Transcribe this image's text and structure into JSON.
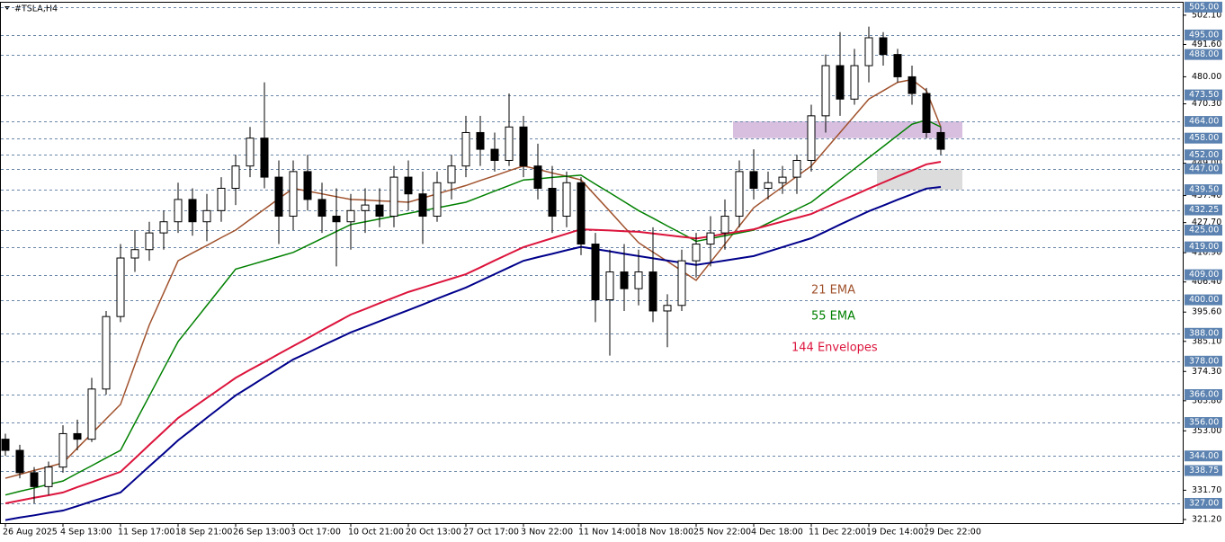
{
  "chart_data": {
    "type": "candlestick",
    "title": "#TSLA,H4",
    "categories": [
      "26 Aug 2025",
      null,
      null,
      null,
      "4 Sep 13:00",
      null,
      null,
      null,
      "11 Sep 17:00",
      null,
      null,
      null,
      "18 Sep 21:00",
      null,
      null,
      null,
      "26 Sep 13:00",
      null,
      null,
      null,
      "3 Oct 17:00",
      null,
      null,
      null,
      "10 Oct 21:00",
      null,
      null,
      null,
      "20 Oct 13:00",
      null,
      null,
      null,
      "27 Oct 17:00",
      null,
      null,
      null,
      "3 Nov 22:00",
      null,
      null,
      null,
      "11 Nov 14:00",
      null,
      null,
      null,
      "18 Nov 18:00",
      null,
      null,
      null,
      "25 Nov 22:00",
      null,
      null,
      null,
      "4 Dec 18:00",
      null,
      null,
      null,
      "11 Dec 22:00",
      null,
      null,
      null,
      "19 Dec 14:00",
      null,
      null,
      null,
      "29 Dec 22:00",
      null
    ],
    "ohlc": [
      [
        350,
        352,
        344,
        346
      ],
      [
        346,
        348,
        336,
        338
      ],
      [
        338,
        340,
        327,
        333
      ],
      [
        333,
        342,
        330,
        340
      ],
      [
        340,
        355,
        338,
        352
      ],
      [
        352,
        357,
        346,
        350
      ],
      [
        350,
        372,
        349,
        368
      ],
      [
        368,
        396,
        366,
        394
      ],
      [
        394,
        420,
        392,
        415
      ],
      [
        415,
        425,
        410,
        418
      ],
      [
        418,
        428,
        414,
        424
      ],
      [
        424,
        432,
        418,
        428
      ],
      [
        428,
        442,
        424,
        436
      ],
      [
        436,
        440,
        423,
        428
      ],
      [
        428,
        438,
        421,
        432
      ],
      [
        432,
        444,
        428,
        440
      ],
      [
        440,
        452,
        434,
        448
      ],
      [
        448,
        462,
        444,
        458
      ],
      [
        458,
        478,
        440,
        444
      ],
      [
        444,
        450,
        420,
        430
      ],
      [
        430,
        450,
        425,
        446
      ],
      [
        446,
        452,
        432,
        436
      ],
      [
        436,
        442,
        424,
        430
      ],
      [
        430,
        440,
        412,
        428
      ],
      [
        428,
        438,
        418,
        432
      ],
      [
        432,
        440,
        424,
        434
      ],
      [
        434,
        440,
        426,
        430
      ],
      [
        430,
        448,
        426,
        444
      ],
      [
        444,
        450,
        432,
        438
      ],
      [
        438,
        446,
        420,
        430
      ],
      [
        430,
        446,
        428,
        442
      ],
      [
        442,
        452,
        436,
        448
      ],
      [
        448,
        466,
        444,
        460
      ],
      [
        460,
        466,
        448,
        454
      ],
      [
        454,
        460,
        446,
        450
      ],
      [
        450,
        474,
        448,
        462
      ],
      [
        462,
        466,
        444,
        448
      ],
      [
        448,
        456,
        436,
        440
      ],
      [
        440,
        448,
        424,
        430
      ],
      [
        430,
        446,
        426,
        442
      ],
      [
        442,
        444,
        416,
        420
      ],
      [
        420,
        424,
        392,
        400
      ],
      [
        400,
        418,
        380,
        410
      ],
      [
        410,
        420,
        396,
        404
      ],
      [
        404,
        418,
        398,
        410
      ],
      [
        410,
        426,
        392,
        396
      ],
      [
        396,
        402,
        383,
        398
      ],
      [
        398,
        418,
        396,
        414
      ],
      [
        414,
        424,
        408,
        420
      ],
      [
        420,
        430,
        412,
        424
      ],
      [
        424,
        436,
        418,
        430
      ],
      [
        430,
        450,
        426,
        446
      ],
      [
        446,
        454,
        436,
        440
      ],
      [
        440,
        446,
        436,
        442
      ],
      [
        442,
        448,
        438,
        444
      ],
      [
        444,
        452,
        438,
        450
      ],
      [
        450,
        470,
        446,
        466
      ],
      [
        466,
        488,
        460,
        484
      ],
      [
        484,
        496,
        466,
        472
      ],
      [
        472,
        490,
        470,
        484
      ],
      [
        484,
        498,
        478,
        494
      ],
      [
        494,
        496,
        484,
        488
      ],
      [
        488,
        490,
        478,
        480
      ],
      [
        480,
        484,
        470,
        474
      ],
      [
        474,
        476,
        458,
        460
      ],
      [
        460,
        462,
        452,
        454
      ]
    ],
    "series": [
      {
        "name": "21 EMA",
        "color": "#a0522d",
        "values": [
          336,
          337.4,
          338.8,
          340.1,
          341.5,
          346.8,
          352,
          357.3,
          362.5,
          376.8,
          391,
          402.5,
          414,
          416.8,
          419.5,
          422.3,
          425,
          428.8,
          432.5,
          436.3,
          440,
          439,
          438,
          437,
          436,
          435.8,
          435.5,
          435.3,
          435,
          436.5,
          438,
          439.5,
          441,
          442.8,
          444.5,
          446.3,
          448,
          446.8,
          445.5,
          444.3,
          443,
          437.4,
          431.8,
          426.1,
          420.5,
          417.1,
          413.8,
          410.4,
          407,
          413.5,
          420,
          426.5,
          433,
          436.8,
          440.5,
          444.3,
          448,
          454,
          460,
          466,
          472,
          475,
          478,
          479,
          475,
          462
        ]
      },
      {
        "name": "55 EMA",
        "color": "#008000",
        "values": [
          330,
          331.3,
          332.5,
          333.8,
          335,
          337.8,
          340.5,
          343.3,
          346,
          355.8,
          365.5,
          375.3,
          385,
          391.5,
          398,
          404.5,
          411,
          412.5,
          414,
          415.5,
          417,
          419.5,
          422,
          424.5,
          427,
          428,
          429,
          430,
          431,
          432,
          433,
          434,
          435,
          437,
          439,
          441,
          443,
          443.4,
          443.9,
          444.3,
          444.7,
          441.5,
          438.4,
          435.2,
          432,
          429.3,
          426.5,
          423.8,
          421,
          422,
          423,
          424,
          425,
          427.5,
          430,
          432.5,
          435,
          439,
          443,
          447,
          451,
          455,
          459,
          463,
          464.5,
          462
        ]
      },
      {
        "name": "144 Envelopes",
        "color": "#dc143c",
        "values": [
          327,
          328,
          329,
          329.9,
          330.9,
          332.8,
          334.6,
          336.5,
          338.3,
          343.1,
          348,
          352.8,
          357.6,
          361.2,
          364.8,
          368.4,
          372,
          374.9,
          377.7,
          380.6,
          383.4,
          386.2,
          389.1,
          391.9,
          394.7,
          396.7,
          398.8,
          400.8,
          402.8,
          404.4,
          406,
          407.6,
          409.2,
          411.6,
          414.1,
          416.5,
          418.9,
          420.5,
          422.1,
          423.7,
          425.3,
          425.1,
          424.9,
          424.6,
          424.4,
          423.8,
          423.2,
          422.6,
          422,
          422.8,
          423.7,
          424.5,
          425.3,
          426.7,
          428.1,
          429.4,
          430.8,
          433.1,
          435.4,
          437.6,
          439.9,
          442.1,
          444.3,
          446.4,
          448.6,
          449.5
        ]
      },
      {
        "color": "#00008b",
        "values": [
          321,
          321.9,
          322.7,
          323.6,
          324.4,
          326,
          327.7,
          329.3,
          330.9,
          335.6,
          340.3,
          344.9,
          349.6,
          353.6,
          357.7,
          361.7,
          365.7,
          368.9,
          372.2,
          375.4,
          378.6,
          381,
          383.5,
          385.9,
          388.3,
          390.3,
          392.3,
          394.3,
          396.3,
          398.3,
          400.4,
          402.4,
          404.4,
          406.8,
          409.2,
          411.6,
          414,
          415.3,
          416.5,
          417.8,
          419,
          418.2,
          417.4,
          416.5,
          415.7,
          414.9,
          414.1,
          413.3,
          412.5,
          413.3,
          414.1,
          414.9,
          415.7,
          417.3,
          418.9,
          420.5,
          422.1,
          424.5,
          427,
          429.4,
          431.8,
          433.8,
          435.9,
          437.9,
          439.9,
          440.5
        ]
      }
    ],
    "ylim": [
      319.9,
      506.9
    ],
    "yticks": [
      {
        "value": 502.1,
        "label": "502.10"
      },
      {
        "value": 491.6,
        "label": "491.60"
      },
      {
        "value": 480,
        "label": "480.00"
      },
      {
        "value": 470.3,
        "label": "470.30"
      },
      {
        "value": 449,
        "label": "449.00"
      },
      {
        "value": 437.4,
        "label": "437.40"
      },
      {
        "value": 427.7,
        "label": "427.70"
      },
      {
        "value": 416.9,
        "label": "416.90"
      },
      {
        "value": 406.4,
        "label": "406.40"
      },
      {
        "value": 395.6,
        "label": "395.60"
      },
      {
        "value": 385.1,
        "label": "385.10"
      },
      {
        "value": 374.3,
        "label": "374.30"
      },
      {
        "value": 363.8,
        "label": "363.80"
      },
      {
        "value": 353,
        "label": "353.00"
      },
      {
        "value": 331.7,
        "label": "331.70"
      },
      {
        "value": 321.2,
        "label": "321.20"
      }
    ],
    "levels": [
      {
        "value": 505,
        "label": "505.00"
      },
      {
        "value": 495,
        "label": "495.00"
      },
      {
        "value": 488,
        "label": "488.00"
      },
      {
        "value": 473.5,
        "label": "473.50"
      },
      {
        "value": 464,
        "label": "464.00"
      },
      {
        "value": 458,
        "label": "458.00"
      },
      {
        "value": 452,
        "label": "452.00"
      },
      {
        "value": 447,
        "label": "447.00"
      },
      {
        "value": 439.5,
        "label": "439.50"
      },
      {
        "value": 432.25,
        "label": "432.25"
      },
      {
        "value": 425,
        "label": "425.00"
      },
      {
        "value": 419,
        "label": "419.00"
      },
      {
        "value": 409,
        "label": "409.00"
      },
      {
        "value": 400,
        "label": "400.00"
      },
      {
        "value": 388,
        "label": "388.00"
      },
      {
        "value": 378,
        "label": "378.00"
      },
      {
        "value": 366,
        "label": "366.00"
      },
      {
        "value": 356,
        "label": "356.00"
      },
      {
        "value": 344,
        "label": "344.00"
      },
      {
        "value": 338.75,
        "label": "338.75"
      },
      {
        "value": 327,
        "label": "327.00"
      }
    ],
    "zones": [
      {
        "top": 464,
        "bottom": 458,
        "color": "#d8bfe0"
      },
      {
        "top": 447,
        "bottom": 439.5,
        "color": "#dcdcdc"
      }
    ]
  }
}
